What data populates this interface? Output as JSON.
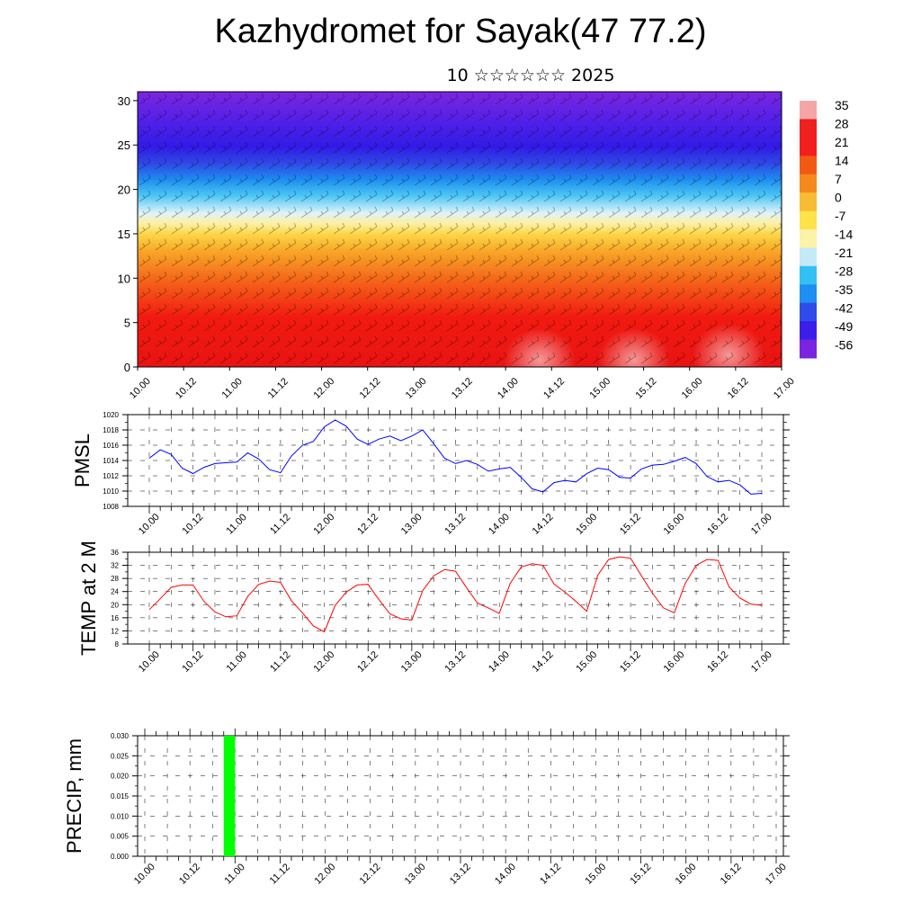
{
  "title": "Kazhydromet for Sayak(47 77.2)",
  "subtitle": "10 ☆☆☆☆☆☆ 2025",
  "colors": {
    "pmsl_line": "#0000ff",
    "temp_line": "#ff0000",
    "precip_bar": "#00ff00"
  },
  "chart_data": [
    {
      "type": "heatmap",
      "name": "cross-section",
      "x_ticks": [
        "10.00",
        "10.12",
        "11.00",
        "11.12",
        "12.00",
        "12.12",
        "13.00",
        "13.12",
        "14.00",
        "14.12",
        "15.00",
        "15.12",
        "16.00",
        "16.12",
        "17.00"
      ],
      "y_ticks": [
        "0",
        "5",
        "10",
        "15",
        "20",
        "25",
        "30"
      ],
      "ylim": [
        0,
        31
      ],
      "colorbar_labels": [
        "35",
        "28",
        "21",
        "14",
        "7",
        "0",
        "-7",
        "-14",
        "-21",
        "-28",
        "-35",
        "-42",
        "-49",
        "-56"
      ],
      "colorbar_colors": [
        "#f4a6a6",
        "#ee2020",
        "#f31e1e",
        "#f25a14",
        "#f58a1c",
        "#f8bc34",
        "#fde24a",
        "#fcf2a8",
        "#c6e9f7",
        "#33c0f3",
        "#1e8ef0",
        "#2f4ce8",
        "#3b1ee8",
        "#7a24e2"
      ],
      "grid": false
    },
    {
      "type": "line",
      "ylabel": "PMSL",
      "x_ticks": [
        "10.00",
        "10.12",
        "11.00",
        "11.12",
        "12.00",
        "12.12",
        "13.00",
        "13.12",
        "14.00",
        "14.12",
        "15.00",
        "15.12",
        "16.00",
        "16.12",
        "17.00"
      ],
      "y_ticks": [
        "1008",
        "1010",
        "1012",
        "1014",
        "1016",
        "1018",
        "1020"
      ],
      "ylim": [
        1008,
        1020
      ],
      "x_step_hours": 3,
      "values": [
        1014.3,
        1015.4,
        1014.8,
        1013.0,
        1012.3,
        1013.1,
        1013.6,
        1013.7,
        1013.8,
        1015.0,
        1014.2,
        1012.8,
        1012.4,
        1014.6,
        1016.0,
        1016.5,
        1018.4,
        1019.3,
        1018.5,
        1016.8,
        1016.1,
        1016.8,
        1017.2,
        1016.6,
        1017.2,
        1018.0,
        1016.2,
        1014.3,
        1013.6,
        1014.0,
        1013.5,
        1012.6,
        1012.9,
        1013.1,
        1011.8,
        1010.3,
        1009.9,
        1011.1,
        1011.4,
        1011.2,
        1012.3,
        1013.0,
        1012.8,
        1011.8,
        1011.7,
        1012.9,
        1013.4,
        1013.5,
        1013.9,
        1014.4,
        1013.6,
        1011.9,
        1011.2,
        1011.4,
        1010.8,
        1009.6,
        1009.7
      ]
    },
    {
      "type": "line",
      "ylabel": "TEMP at 2 M",
      "x_ticks": [
        "10.00",
        "10.12",
        "11.00",
        "11.12",
        "12.00",
        "12.12",
        "13.00",
        "13.12",
        "14.00",
        "14.12",
        "15.00",
        "15.12",
        "16.00",
        "16.12",
        "17.00"
      ],
      "y_ticks": [
        "8",
        "12",
        "16",
        "20",
        "24",
        "28",
        "32",
        "36"
      ],
      "ylim": [
        8,
        36
      ],
      "x_step_hours": 3,
      "values": [
        18.5,
        21.8,
        25.3,
        26.0,
        26.0,
        21.0,
        17.8,
        16.3,
        16.6,
        22.5,
        26.2,
        27.2,
        26.8,
        21.2,
        17.5,
        13.5,
        11.7,
        19.8,
        23.8,
        26.0,
        26.2,
        21.5,
        17.2,
        15.7,
        15.3,
        24.3,
        28.8,
        30.7,
        30.2,
        25.2,
        20.5,
        19.0,
        17.3,
        26.5,
        31.5,
        32.5,
        32.0,
        26.3,
        23.8,
        21.0,
        18.0,
        29.0,
        33.8,
        34.6,
        34.2,
        28.8,
        23.5,
        19.0,
        17.5,
        26.5,
        32.0,
        33.8,
        33.5,
        25.5,
        22.0,
        20.2,
        19.8
      ]
    },
    {
      "type": "bar",
      "ylabel": "PRECIP, mm",
      "x_ticks": [
        "10.00",
        "10.12",
        "11.00",
        "11.12",
        "12.00",
        "12.12",
        "13.00",
        "13.12",
        "14.00",
        "14.12",
        "15.00",
        "15.12",
        "16.00",
        "16.12",
        "17.00"
      ],
      "y_ticks": [
        "0.000",
        "0.005",
        "0.010",
        "0.015",
        "0.020",
        "0.025",
        "0.030"
      ],
      "ylim": [
        0,
        0.03
      ],
      "bars": [
        {
          "hour_start": 21,
          "hour_end": 24,
          "value": 0.03
        }
      ]
    }
  ]
}
